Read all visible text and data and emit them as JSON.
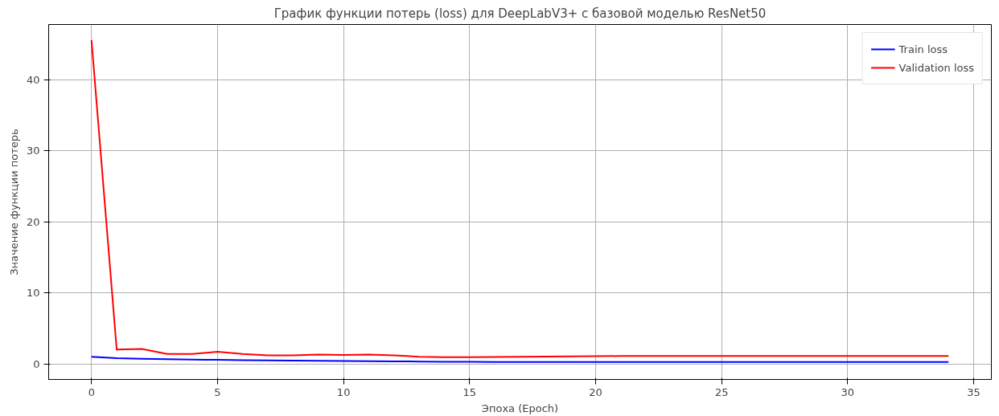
{
  "chart_data": {
    "type": "line",
    "title": "График функции потерь (loss) для DeepLabV3+ с базовой моделью ResNet50",
    "xlabel": "Эпоха (Epoch)",
    "ylabel": "Значение функции потерь",
    "x": [
      0,
      1,
      2,
      3,
      4,
      5,
      6,
      7,
      8,
      9,
      10,
      11,
      12,
      13,
      14,
      15,
      16,
      17,
      18,
      19,
      20,
      21,
      22,
      23,
      24,
      25,
      26,
      27,
      28,
      29,
      30,
      31,
      32,
      33,
      34
    ],
    "series": [
      {
        "name": "Train loss",
        "color": "#0000ff",
        "values": [
          1.0,
          0.8,
          0.72,
          0.65,
          0.6,
          0.56,
          0.52,
          0.49,
          0.46,
          0.43,
          0.4,
          0.37,
          0.35,
          0.33,
          0.3,
          0.28,
          0.27,
          0.26,
          0.26,
          0.25,
          0.25,
          0.25,
          0.25,
          0.25,
          0.25,
          0.25,
          0.25,
          0.25,
          0.25,
          0.25,
          0.25,
          0.25,
          0.25,
          0.25,
          0.25
        ]
      },
      {
        "name": "Validation loss",
        "color": "#ff0000",
        "values": [
          45.6,
          2.0,
          2.1,
          1.4,
          1.4,
          1.7,
          1.4,
          1.2,
          1.2,
          1.3,
          1.25,
          1.3,
          1.2,
          1.0,
          0.95,
          0.95,
          0.97,
          1.0,
          1.03,
          1.05,
          1.08,
          1.1,
          1.1,
          1.1,
          1.1,
          1.1,
          1.1,
          1.1,
          1.1,
          1.1,
          1.1,
          1.1,
          1.1,
          1.1,
          1.1
        ]
      }
    ],
    "xlim": [
      -1.7,
      35.7
    ],
    "xticks": [
      0,
      5,
      10,
      15,
      20,
      25,
      30,
      35
    ],
    "ylim": [
      -2.2,
      47.8
    ],
    "yticks": [
      0,
      10,
      20,
      30,
      40
    ],
    "grid": true,
    "legend": "top right",
    "line_style": "solid",
    "marker": "none"
  }
}
